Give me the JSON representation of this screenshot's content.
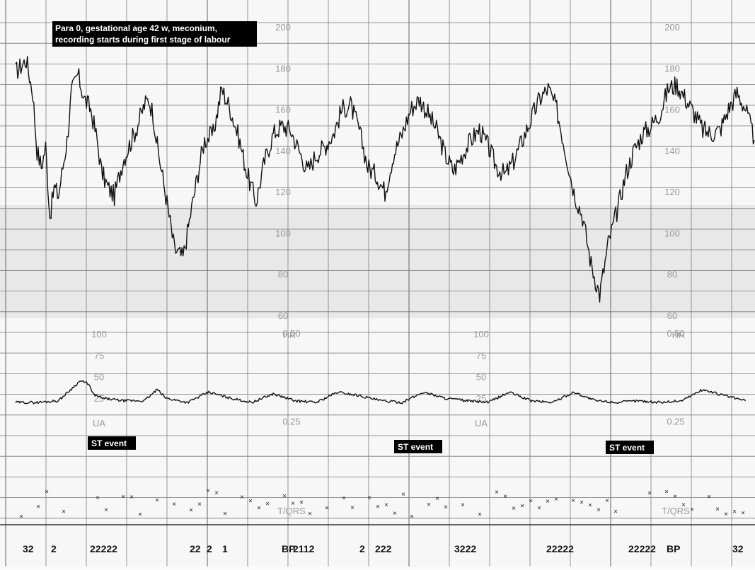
{
  "caption": {
    "line1": "Para 0, gestational age 42 w, meconium,",
    "line2": "recording starts during first stage of labour"
  },
  "hr_scale": {
    "ticks": [
      "200",
      "180",
      "160",
      "140",
      "120",
      "100",
      "80",
      "60"
    ],
    "label": "HR"
  },
  "ua_scale": {
    "ticks": [
      "100",
      "75",
      "50",
      "25"
    ],
    "label": "UA"
  },
  "tqrs_scale": {
    "ticks": [
      "0.50",
      "0.25"
    ],
    "label": "T/QRS"
  },
  "st_event_label": "ST event",
  "bottom_markers": [
    "32",
    "2",
    "22222",
    "22",
    "2",
    "1",
    "BP",
    "2112",
    "2",
    "222",
    "3222",
    "22222",
    "22222",
    "BP",
    "32"
  ],
  "colors": {
    "grid": "#7a7a7a",
    "trace": "#111111",
    "label_bg": "#000000",
    "label_text": "#ffffff"
  },
  "chart_data": {
    "type": "line",
    "series": [
      {
        "channel": "HR",
        "ylim": [
          60,
          200
        ],
        "x": [
          0,
          5,
          8,
          10,
          12,
          14,
          16,
          18,
          20,
          22,
          24,
          26,
          29,
          32,
          35,
          38,
          40,
          43,
          46,
          50,
          54,
          56,
          60,
          62,
          64,
          66,
          70,
          74,
          78,
          82,
          86,
          88,
          92,
          96,
          100,
          104,
          108,
          112,
          116,
          120,
          124,
          128,
          132,
          136,
          140,
          144,
          148,
          152,
          156,
          160,
          164,
          168,
          172,
          176,
          180,
          184,
          188,
          192,
          196,
          200,
          204,
          208,
          212,
          216,
          220,
          224,
          228,
          232,
          236,
          240,
          244,
          248,
          252,
          256,
          260,
          264,
          268,
          272,
          276,
          280,
          284,
          288,
          292,
          296,
          300,
          304,
          308,
          312,
          316,
          320,
          324,
          328,
          332,
          336,
          340,
          344
        ],
        "values": [
          178,
          184,
          168,
          140,
          132,
          142,
          108,
          122,
          118,
          132,
          145,
          168,
          177,
          165,
          160,
          145,
          130,
          122,
          118,
          135,
          145,
          150,
          162,
          165,
          158,
          142,
          118,
          92,
          88,
          112,
          135,
          145,
          148,
          170,
          160,
          146,
          128,
          115,
          135,
          148,
          152,
          150,
          140,
          130,
          138,
          142,
          148,
          160,
          162,
          150,
          132,
          128,
          120,
          138,
          148,
          160,
          165,
          158,
          150,
          138,
          130,
          138,
          145,
          150,
          142,
          132,
          128,
          135,
          145,
          155,
          165,
          170,
          160,
          140,
          120,
          108,
          85,
          70,
          95,
          110,
          128,
          140,
          148,
          152,
          158,
          170,
          172,
          165,
          158,
          150,
          148,
          150,
          160,
          168,
          160,
          145
        ]
      },
      {
        "channel": "UA",
        "ylim": [
          0,
          100
        ],
        "x": [
          0,
          10,
          20,
          30,
          34,
          36,
          40,
          50,
          60,
          66,
          70,
          80,
          90,
          100,
          110,
          120,
          130,
          140,
          150,
          160,
          170,
          180,
          190,
          200,
          210,
          220,
          230,
          240,
          250,
          260,
          270,
          280,
          290,
          300,
          310,
          320,
          330,
          340
        ],
        "values": [
          20,
          20,
          22,
          45,
          42,
          30,
          25,
          22,
          22,
          35,
          25,
          20,
          32,
          25,
          20,
          30,
          22,
          20,
          32,
          28,
          22,
          20,
          32,
          25,
          22,
          20,
          32,
          22,
          20,
          32,
          22,
          20,
          22,
          20,
          22,
          35,
          28,
          22
        ]
      }
    ]
  }
}
